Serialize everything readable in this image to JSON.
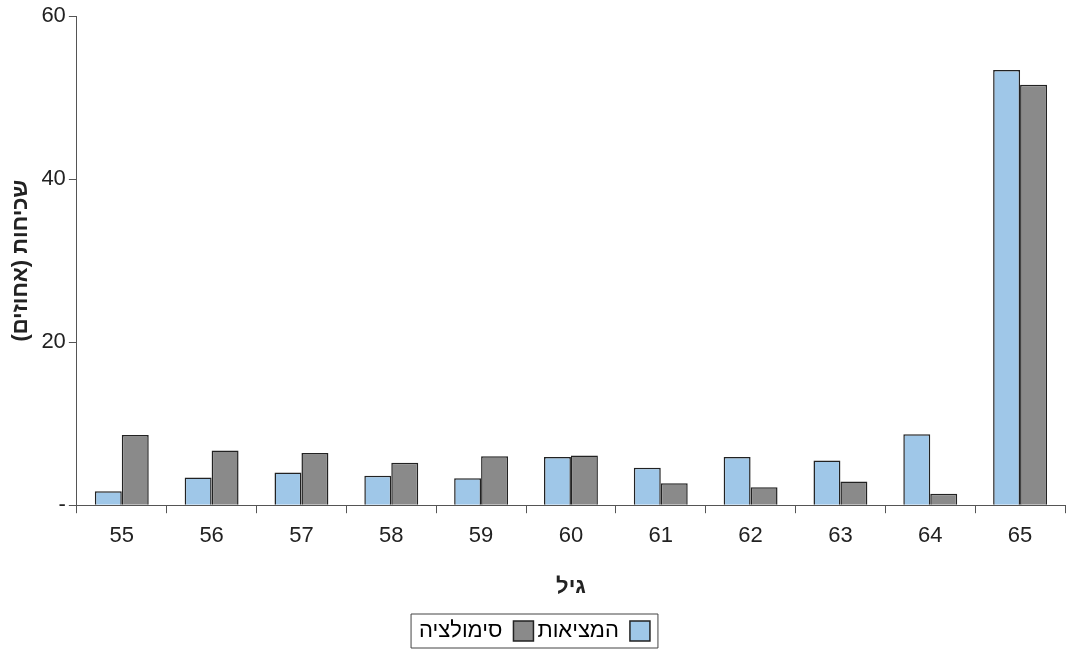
{
  "chart_data": {
    "type": "bar",
    "xlabel": "גיל",
    "ylabel": "שכיחות (אחוזים)",
    "categories": [
      "55",
      "56",
      "57",
      "58",
      "59",
      "60",
      "61",
      "62",
      "63",
      "64",
      "65"
    ],
    "series": [
      {
        "name": "המציאות",
        "color": "#9fc7e8",
        "values": [
          1.7,
          3.4,
          4.0,
          3.6,
          3.3,
          5.9,
          4.6,
          5.9,
          5.5,
          8.7,
          53.4
        ]
      },
      {
        "name": "סימולציה",
        "color": "#8a8a8a",
        "values": [
          8.6,
          6.7,
          6.4,
          5.2,
          6.0,
          6.1,
          2.7,
          2.2,
          2.9,
          1.4,
          51.6
        ]
      }
    ],
    "ylim": [
      0,
      60
    ],
    "yticks": [
      {
        "value": 0,
        "label": "-"
      },
      20,
      40,
      60
    ],
    "grid": false,
    "legend": "bottom"
  }
}
